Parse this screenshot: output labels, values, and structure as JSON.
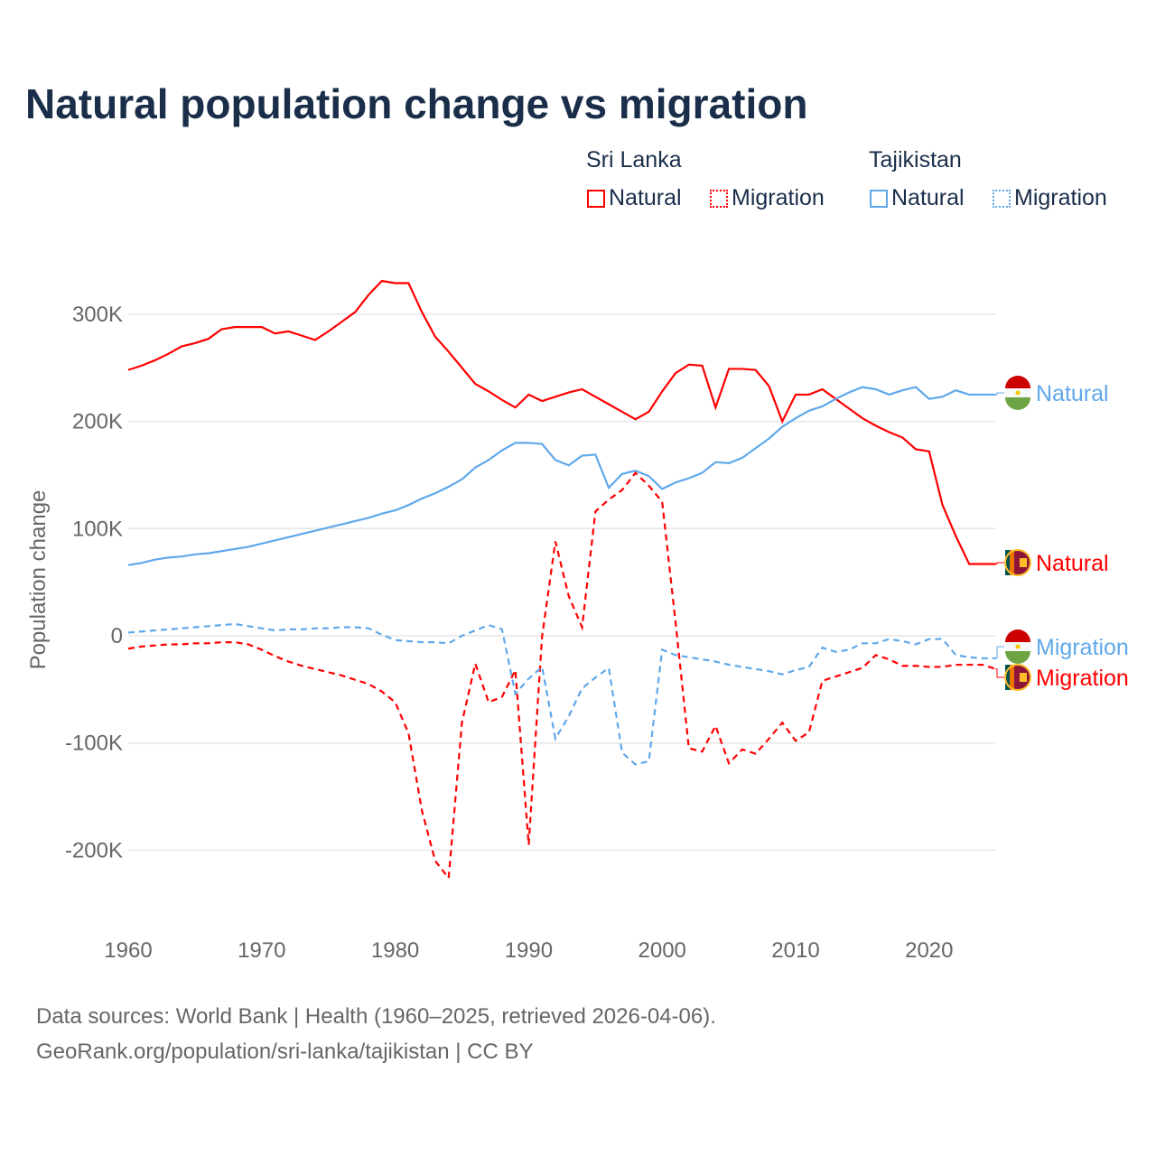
{
  "chart_data": {
    "type": "line",
    "title": "Natural population change vs migration",
    "ylabel": "Population change",
    "xlabel": "",
    "ylim": [
      -260000,
      360000
    ],
    "xlim": [
      1960,
      2025
    ],
    "yticks": [
      {
        "v": 300000,
        "label": "300K"
      },
      {
        "v": 200000,
        "label": "200K"
      },
      {
        "v": 100000,
        "label": "100K"
      },
      {
        "v": 0,
        "label": "0"
      },
      {
        "v": -100000,
        "label": "-100K"
      },
      {
        "v": -200000,
        "label": "-200K"
      }
    ],
    "xticks": [
      {
        "v": 1960,
        "label": "1960"
      },
      {
        "v": 1970,
        "label": "1970"
      },
      {
        "v": 1980,
        "label": "1980"
      },
      {
        "v": 1990,
        "label": "1990"
      },
      {
        "v": 2000,
        "label": "2000"
      },
      {
        "v": 2010,
        "label": "2010"
      },
      {
        "v": 2020,
        "label": "2020"
      }
    ],
    "x_start": 1960,
    "units": "thousands",
    "series": [
      {
        "name": "Sri Lanka Natural",
        "country": "Sri Lanka",
        "kind": "Natural",
        "color": "#ff0000",
        "dash": false,
        "end_label": "Natural",
        "values": [
          248,
          252,
          257,
          263,
          270,
          273,
          277,
          286,
          288,
          288,
          288,
          282,
          284,
          280,
          276,
          284,
          293,
          302,
          318,
          331,
          329,
          329,
          302,
          279,
          265,
          250,
          235,
          228,
          220,
          213,
          225,
          219,
          223,
          227,
          230,
          223,
          216,
          209,
          202,
          209,
          228,
          245,
          253,
          252,
          213,
          249,
          249,
          248,
          233,
          200,
          225,
          225,
          230,
          221,
          212,
          203,
          196,
          190,
          185,
          174,
          172,
          122,
          93,
          67,
          67,
          67
        ]
      },
      {
        "name": "Sri Lanka Migration",
        "country": "Sri Lanka",
        "kind": "Migration",
        "color": "#ff0000",
        "dash": true,
        "end_label": "Migration",
        "values": [
          -12,
          -10,
          -9,
          -8,
          -8,
          -7,
          -7,
          -6,
          -6,
          -8,
          -13,
          -19,
          -24,
          -28,
          -31,
          -34,
          -37,
          -41,
          -45,
          -52,
          -62,
          -91,
          -163,
          -210,
          -226,
          -81,
          -26,
          -62,
          -57,
          -32,
          -195,
          -1,
          88,
          37,
          8,
          116,
          127,
          136,
          152,
          140,
          125,
          13,
          -105,
          -108,
          -84,
          -119,
          -106,
          -110,
          -96,
          -81,
          -98,
          -90,
          -42,
          -38,
          -34,
          -30,
          -18,
          -22,
          -28,
          -28,
          -29,
          -29,
          -27,
          -27,
          -27,
          -31
        ]
      },
      {
        "name": "Tajikistan Natural",
        "country": "Tajikistan",
        "kind": "Natural",
        "color": "#5fa8ea",
        "dash": false,
        "end_label": "Natural",
        "values": [
          66,
          68,
          71,
          73,
          74,
          76,
          77,
          79,
          81,
          83,
          86,
          89,
          92,
          95,
          98,
          101,
          104,
          107,
          110,
          114,
          117,
          122,
          128,
          133,
          139,
          146,
          157,
          164,
          173,
          180,
          180,
          179,
          164,
          159,
          168,
          169,
          138,
          151,
          154,
          149,
          137,
          143,
          147,
          152,
          162,
          161,
          166,
          175,
          184,
          195,
          203,
          210,
          214,
          221,
          227,
          232,
          230,
          225,
          229,
          232,
          221,
          223,
          229,
          225,
          225,
          225
        ]
      },
      {
        "name": "Tajikistan Migration",
        "country": "Tajikistan",
        "kind": "Migration",
        "color": "#5fa8ea",
        "dash": true,
        "end_label": "Migration",
        "values": [
          3,
          4,
          5,
          6,
          7,
          8,
          9,
          10,
          11,
          9,
          7,
          5,
          6,
          6,
          7,
          7,
          8,
          8,
          7,
          1,
          -4,
          -5,
          -6,
          -6,
          -7,
          0,
          5,
          10,
          6,
          -54,
          -40,
          -29,
          -96,
          -75,
          -49,
          -39,
          -30,
          -109,
          -120,
          -117,
          -13,
          -18,
          -20,
          -22,
          -24,
          -27,
          -29,
          -31,
          -33,
          -36,
          -32,
          -29,
          -11,
          -15,
          -13,
          -7,
          -7,
          -3,
          -5,
          -8,
          -3,
          -3,
          -18,
          -20,
          -21,
          -21
        ]
      }
    ]
  },
  "legend": {
    "sri_lanka": "Sri Lanka",
    "tajikistan": "Tajikistan",
    "natural": "Natural",
    "migration": "Migration"
  },
  "footer": {
    "line1": "Data sources: World Bank | Health (1960–2025, retrieved 2026-04-06).",
    "line2": "GeoRank.org/population/sri-lanka/tajikistan | CC BY"
  }
}
